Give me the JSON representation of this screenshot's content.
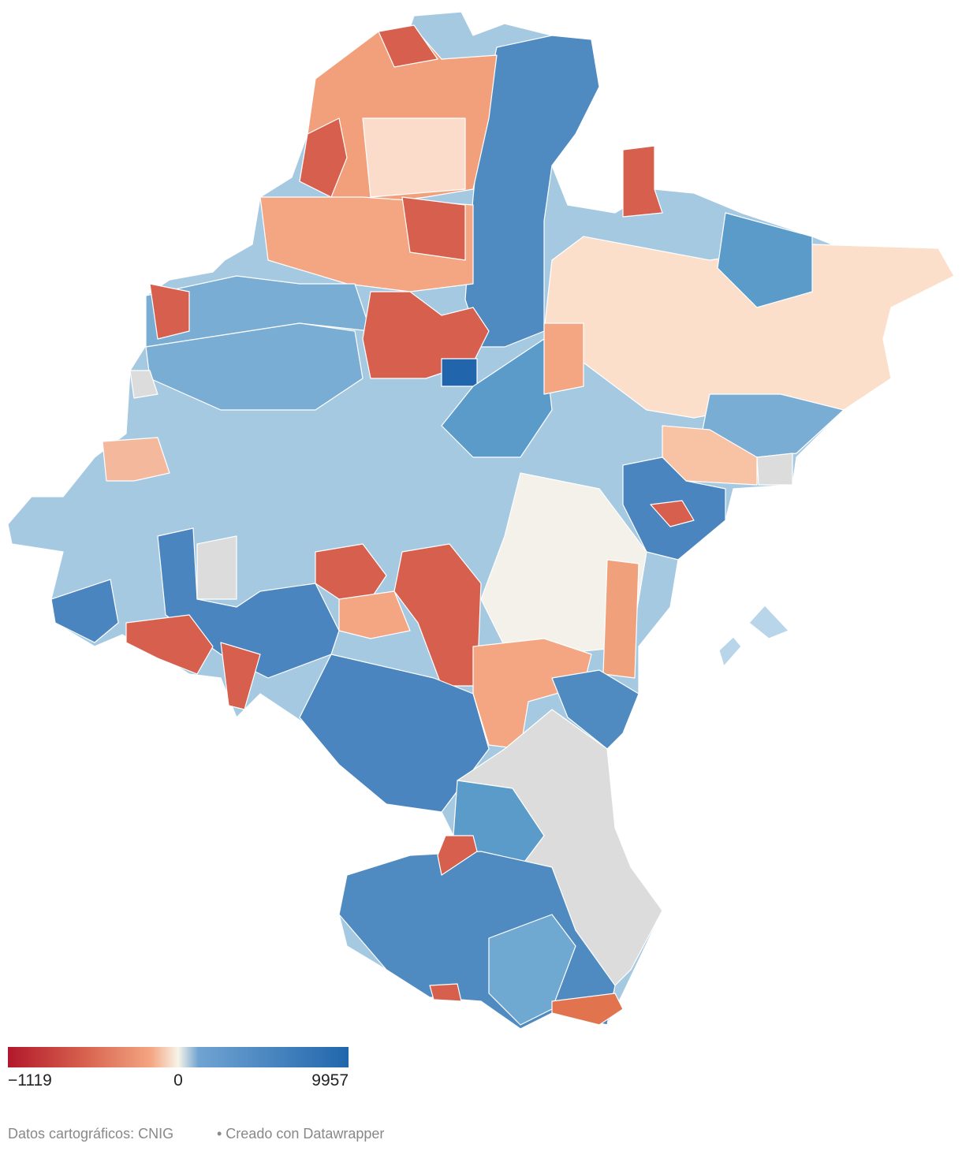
{
  "legend": {
    "min": {
      "value": -1119,
      "label": "−1119"
    },
    "mid": 0,
    "max": 9957
  },
  "footer": {
    "source": "Datos cartográficos: CNIG",
    "credit": "• Creado con Datawrapper"
  }
}
